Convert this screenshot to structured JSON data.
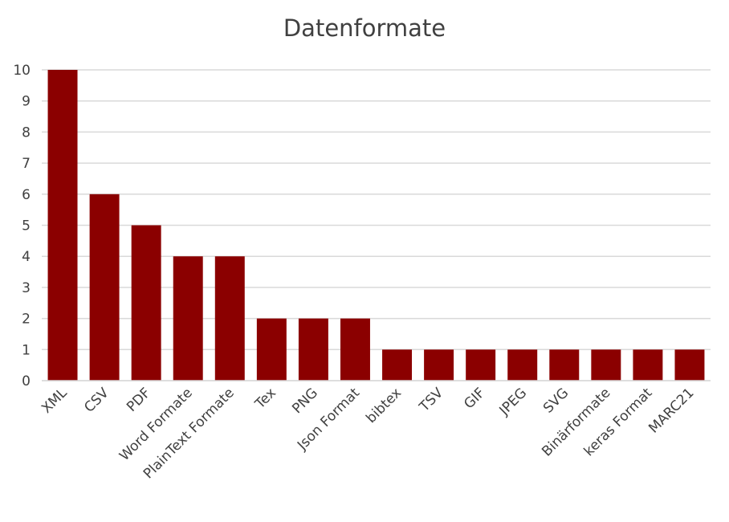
{
  "chart_data": {
    "type": "bar",
    "title": "Datenformate",
    "xlabel": "",
    "ylabel": "",
    "categories": [
      "XML",
      "CSV",
      "PDF",
      "Word Formate",
      "PlainText Formate",
      "Tex",
      "PNG",
      "Json Format",
      "bibtex",
      "TSV",
      "GIF",
      "JPEG",
      "SVG",
      "Binärformate",
      "keras Format",
      "MARC21"
    ],
    "values": [
      10,
      6,
      5,
      4,
      4,
      2,
      2,
      2,
      1,
      1,
      1,
      1,
      1,
      1,
      1,
      1
    ],
    "ylim": [
      0,
      10
    ],
    "yticks": [
      0,
      1,
      2,
      3,
      4,
      5,
      6,
      7,
      8,
      9,
      10
    ],
    "grid": true,
    "legend": "none",
    "bar_color": "#8B0000",
    "grid_color": "#d9d9d9",
    "text_color": "#404040"
  }
}
